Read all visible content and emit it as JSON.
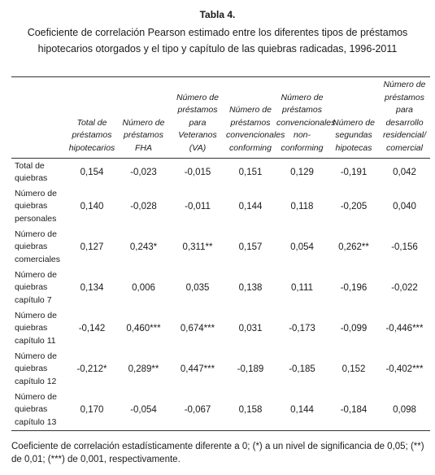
{
  "caption": {
    "label": "Tabla 4.",
    "title": "Coeficiente de correlación Pearson estimado entre los diferentes tipos de préstamos hipotecarios otorgados y el tipo y capítulo de las quiebras radicadas, 1996-2011"
  },
  "table": {
    "headers": [
      "",
      "Total de préstamos hipotecarios",
      "Número de préstamos FHA",
      "Número de préstamos para Veteranos (VA)",
      "Número de préstamos convencionales conforming",
      "Número de préstamos convencionales non-conforming",
      "Número de segundas hipotecas",
      "Número de préstamos para desarrollo residencial/ comercial"
    ],
    "rows": [
      {
        "label": "Total de quiebras",
        "values": [
          "0,154",
          "-0,023",
          "-0,015",
          "0,151",
          "0,129",
          "-0,191",
          "0,042"
        ]
      },
      {
        "label": "Número de quiebras personales",
        "values": [
          "0,140",
          "-0,028",
          "-0,011",
          "0,144",
          "0,118",
          "-0,205",
          "0,040"
        ]
      },
      {
        "label": "Número de quiebras comerciales",
        "values": [
          "0,127",
          "0,243*",
          "0,311**",
          "0,157",
          "0,054",
          "0,262**",
          "-0,156"
        ]
      },
      {
        "label": "Número de quiebras capítulo 7",
        "values": [
          "0,134",
          "0,006",
          "0,035",
          "0,138",
          "0,111",
          "-0,196",
          "-0,022"
        ]
      },
      {
        "label": "Número de quiebras capítulo 11",
        "values": [
          "-0,142",
          "0,460***",
          "0,674***",
          "0,031",
          "-0,173",
          "-0,099",
          "-0,446***"
        ]
      },
      {
        "label": "Número de quiebras capítulo 12",
        "values": [
          "-0,212*",
          "0,289**",
          "0,447***",
          "-0,189",
          "-0,185",
          "0,152",
          "-0,402***"
        ]
      },
      {
        "label": "Número de quiebras capítulo 13",
        "values": [
          "0,170",
          "-0,054",
          "-0,067",
          "0,158",
          "0,144",
          "-0,184",
          "0,098"
        ]
      }
    ]
  },
  "footnote": "Coeficiente de correlación estadísticamente diferente a 0; (*) a un nivel de significancia de 0,05; (**) de 0,01; (***) de 0,001, respectivamente."
}
